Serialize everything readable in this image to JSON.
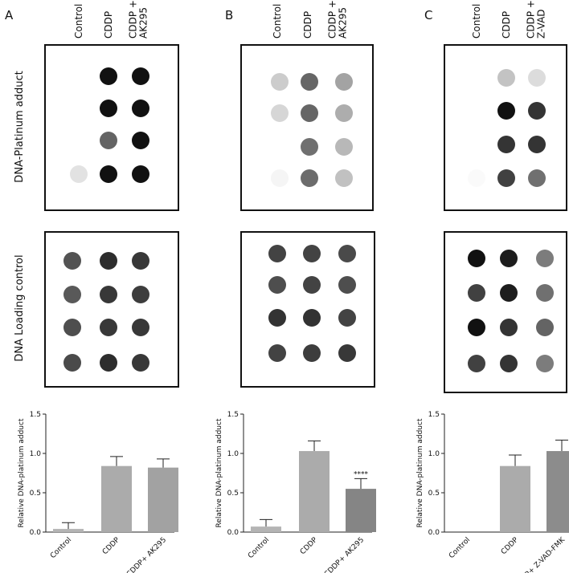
{
  "panels": [
    {
      "letter": "A",
      "columns": [
        [
          "Control"
        ],
        [
          "CDDP"
        ],
        [
          "CDDP +",
          "AK295"
        ]
      ]
    },
    {
      "letter": "B",
      "columns": [
        [
          "Control"
        ],
        [
          "CDDP"
        ],
        [
          "CDDP +",
          "AK295"
        ]
      ]
    },
    {
      "letter": "C",
      "columns": [
        [
          "Control"
        ],
        [
          "CDDP"
        ],
        [
          "CDDP +",
          "Z-VAD"
        ]
      ]
    }
  ],
  "row_labels": [
    "DNA-Platinum adduct",
    "DNA Loading control"
  ],
  "chart_data": [
    {
      "type": "bar",
      "ylabel": "Relative DNA-platinum adduct",
      "categories": [
        "Control",
        "CDDP",
        "CDDP+ AK295"
      ],
      "values": [
        0.04,
        0.84,
        0.82
      ],
      "errors": [
        0.08,
        0.12,
        0.11
      ],
      "colors": [
        "#b4b4b4",
        "#ababab",
        "#a2a2a2"
      ],
      "ylim": [
        0,
        1.5
      ],
      "yticks": [
        {
          "value": 0,
          "label": "0.0"
        },
        0.5,
        {
          "value": 1,
          "label": "1.0"
        },
        1.5
      ]
    },
    {
      "type": "bar",
      "ylabel": "Relative DNA-platinum adduct",
      "categories": [
        "Control",
        "CDDP",
        "CDDP+ AK295"
      ],
      "values": [
        0.07,
        1.03,
        0.55
      ],
      "errors": [
        0.09,
        0.13,
        0.13
      ],
      "colors": [
        "#b4b4b4",
        "#ababab",
        "#858585"
      ],
      "annotation": "****",
      "ylim": [
        0,
        1.5
      ],
      "yticks": [
        {
          "value": 0,
          "label": "0.0"
        },
        0.5,
        {
          "value": 1,
          "label": "1.0"
        },
        1.5
      ]
    },
    {
      "type": "bar",
      "ylabel": "Relative DNA-platinum adduct",
      "categories": [
        "Control",
        "CDDP",
        "CDDP+ Z-VAD-FMK"
      ],
      "values": [
        0,
        0.84,
        1.03
      ],
      "errors": [
        null,
        0.14,
        0.14
      ],
      "colors": [
        "#b4b4b4",
        "#ababab",
        "#8c8c8c"
      ],
      "ylim": [
        0,
        1.5
      ],
      "yticks": [
        {
          "value": 0,
          "label": "0.0"
        },
        0.5,
        {
          "value": 1,
          "label": "1.0"
        },
        1.5
      ]
    }
  ]
}
